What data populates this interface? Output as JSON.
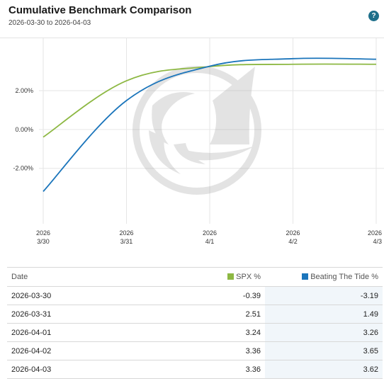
{
  "header": {
    "title": "Cumulative Benchmark Comparison",
    "subtitle": "2026-03-30 to 2026-04-03",
    "help_icon": "?"
  },
  "colors": {
    "spx": "#8db843",
    "btt": "#1b75bb",
    "grid": "#e6e6e6"
  },
  "chart_data": {
    "type": "line",
    "x": [
      "2026-03-30",
      "2026-03-31",
      "2026-04-01",
      "2026-04-02",
      "2026-04-03"
    ],
    "x_tick_labels": [
      {
        "year": "2026",
        "md": "3/30"
      },
      {
        "year": "2026",
        "md": "3/31"
      },
      {
        "year": "2026",
        "md": "4/1"
      },
      {
        "year": "2026",
        "md": "4/2"
      },
      {
        "year": "2026",
        "md": "4/3"
      }
    ],
    "y_ticks": [
      {
        "value": -2.0,
        "label": "-2.00%"
      },
      {
        "value": 0.0,
        "label": "0.00%"
      },
      {
        "value": 2.0,
        "label": "2.00%"
      }
    ],
    "ylim": [
      -4.6,
      4.7
    ],
    "grid": true,
    "series": [
      {
        "name": "SPX %",
        "values": [
          -0.39,
          2.51,
          3.24,
          3.36,
          3.36
        ]
      },
      {
        "name": "Beating The Tide %",
        "values": [
          -3.19,
          1.49,
          3.26,
          3.65,
          3.62
        ]
      }
    ],
    "watermark": "sailboat-wave-logo"
  },
  "table": {
    "headers": {
      "date": "Date",
      "spx": "SPX %",
      "btt": "Beating The Tide %"
    },
    "rows": [
      {
        "date": "2026-03-30",
        "spx": "-0.39",
        "btt": "-3.19"
      },
      {
        "date": "2026-03-31",
        "spx": "2.51",
        "btt": "1.49"
      },
      {
        "date": "2026-04-01",
        "spx": "3.24",
        "btt": "3.26"
      },
      {
        "date": "2026-04-02",
        "spx": "3.36",
        "btt": "3.65"
      },
      {
        "date": "2026-04-03",
        "spx": "3.36",
        "btt": "3.62"
      }
    ]
  }
}
